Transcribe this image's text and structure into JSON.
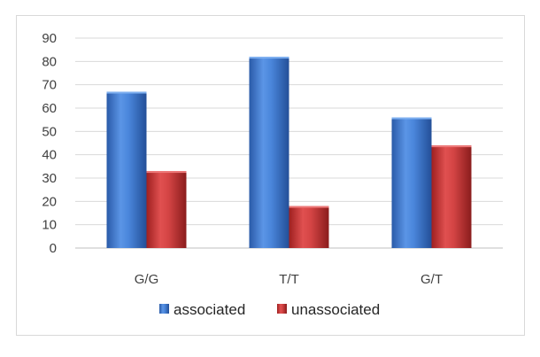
{
  "chart_data": {
    "type": "bar",
    "categories": [
      "G/G",
      "T/T",
      "G/T"
    ],
    "series": [
      {
        "name": "associated",
        "values": [
          67,
          82,
          56
        ],
        "color": "#3c78d0"
      },
      {
        "name": "unassociated",
        "values": [
          33,
          18,
          44
        ],
        "color": "#c83232"
      }
    ],
    "ylim": [
      0,
      90
    ],
    "yticks": [
      0,
      10,
      20,
      30,
      40,
      50,
      60,
      70,
      80,
      90
    ],
    "grid": true,
    "legend_position": "bottom"
  }
}
